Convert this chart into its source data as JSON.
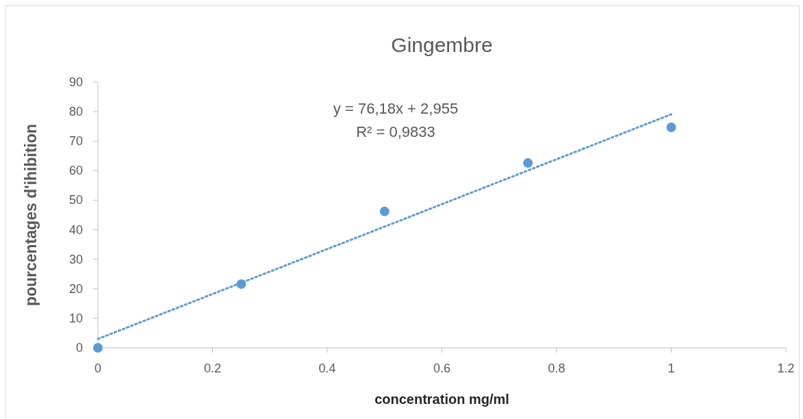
{
  "chart_data": {
    "type": "scatter",
    "title": "Gingembre",
    "xlabel": "concentration mg/ml",
    "ylabel": "pourcentages d'ihibition",
    "xlim": [
      0,
      1.2
    ],
    "xticks": [
      0,
      0.2,
      0.4,
      0.6,
      0.8,
      1,
      1.2
    ],
    "ylim": [
      0,
      90
    ],
    "yticks": [
      0,
      10,
      20,
      30,
      40,
      50,
      60,
      70,
      80,
      90
    ],
    "grid": false,
    "series": [
      {
        "color": "#5b9bd5",
        "marker": "circle",
        "x": [
          0,
          0.25,
          0.5,
          0.75,
          1
        ],
        "values": [
          0,
          21.6,
          46.2,
          62.6,
          74.7
        ]
      },
      {
        "type": "line",
        "color": "#5b9bd5",
        "line_style": "dotted",
        "marker": "none",
        "x": [
          0,
          1
        ],
        "values": [
          3,
          79.1
        ]
      }
    ],
    "annotations": [
      "y = 76,18x + 2,955",
      "R² = 0,9833"
    ]
  }
}
